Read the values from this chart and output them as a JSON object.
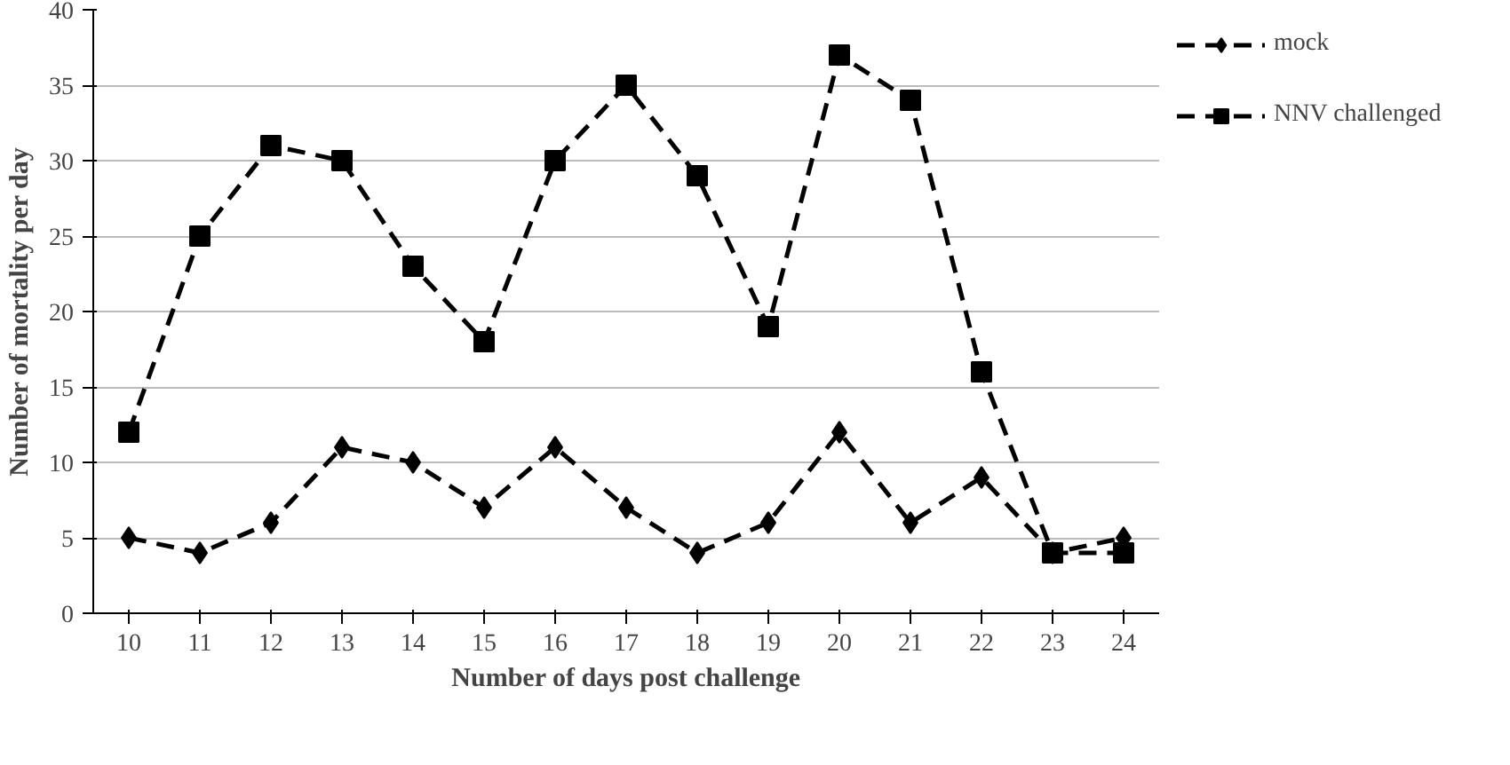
{
  "chart_data": {
    "type": "line",
    "xlabel": "Number of days post challenge",
    "ylabel": "Number of mortality per day",
    "categories": [
      "10",
      "11",
      "12",
      "13",
      "14",
      "15",
      "16",
      "17",
      "18",
      "19",
      "20",
      "21",
      "22",
      "23",
      "24"
    ],
    "series": [
      {
        "name": "mock",
        "color": "#000000",
        "marker": "diamond",
        "line_style": "dashed",
        "values": [
          5,
          4,
          6,
          11,
          10,
          7,
          11,
          7,
          4,
          6,
          12,
          6,
          9,
          4,
          5
        ]
      },
      {
        "name": "NNV challenged",
        "color": "#000000",
        "marker": "square",
        "line_style": "dashed",
        "values": [
          12,
          25,
          31,
          30,
          23,
          18,
          30,
          35,
          29,
          19,
          37,
          34,
          16,
          4,
          4
        ]
      }
    ],
    "ylim": [
      0,
      40
    ],
    "yticks": [
      0,
      5,
      10,
      15,
      20,
      25,
      30,
      35,
      40
    ],
    "grid": "y",
    "legend": "top right"
  }
}
